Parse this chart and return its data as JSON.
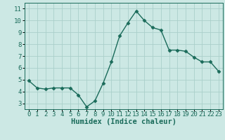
{
  "title": "",
  "xlabel": "Humidex (Indice chaleur)",
  "ylabel": "",
  "x": [
    0,
    1,
    2,
    3,
    4,
    5,
    6,
    7,
    8,
    9,
    10,
    11,
    12,
    13,
    14,
    15,
    16,
    17,
    18,
    19,
    20,
    21,
    22,
    23
  ],
  "y": [
    4.9,
    4.3,
    4.2,
    4.3,
    4.3,
    4.3,
    3.7,
    2.7,
    3.2,
    4.7,
    6.5,
    8.7,
    9.8,
    10.8,
    10.0,
    9.4,
    9.2,
    7.5,
    7.5,
    7.4,
    6.9,
    6.5,
    6.5,
    5.7
  ],
  "line_color": "#1a6b5a",
  "bg_color": "#cce8e4",
  "grid_color": "#aacfca",
  "ylim": [
    2.5,
    11.5
  ],
  "xlim": [
    -0.5,
    23.5
  ],
  "yticks": [
    3,
    4,
    5,
    6,
    7,
    8,
    9,
    10,
    11
  ],
  "xticks": [
    0,
    1,
    2,
    3,
    4,
    5,
    6,
    7,
    8,
    9,
    10,
    11,
    12,
    13,
    14,
    15,
    16,
    17,
    18,
    19,
    20,
    21,
    22,
    23
  ],
  "marker": "D",
  "markersize": 2.5,
  "linewidth": 1.0,
  "xlabel_fontsize": 7.5,
  "tick_fontsize": 6.5
}
